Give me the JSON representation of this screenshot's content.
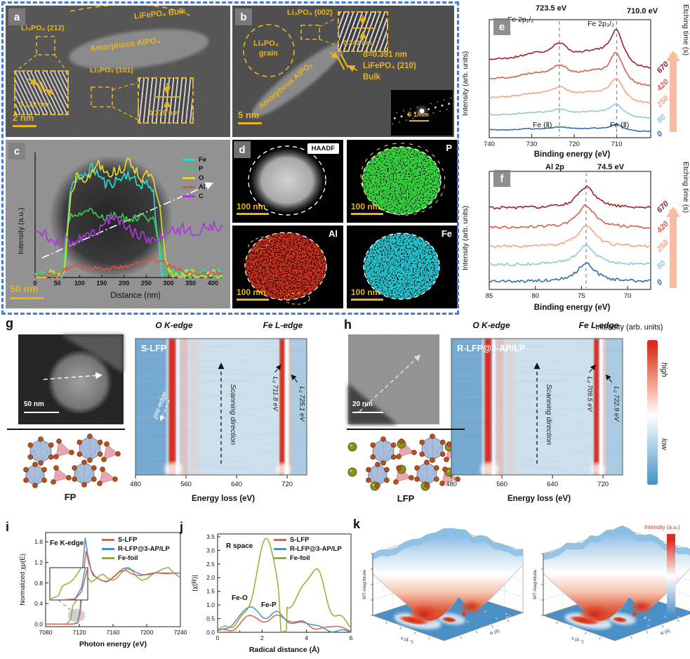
{
  "panels": {
    "a": {
      "letter": "a",
      "lifepo4_bulk": "LiFePO₄ Bulk",
      "li3po4_212": "Li₃PO₄ (212)",
      "amorphous": "Amorphous AlPO₄",
      "li3po4_101": "Li₃PO₄ (101)",
      "d1": "0.179 nm",
      "d2": "0.379 nm",
      "scalebar": "2 nm"
    },
    "b": {
      "letter": "b",
      "li3po4_002": "Li₃PO₄ (002)",
      "grain1": "Li₃PO₄",
      "grain2": "grain",
      "d_inset": "0.242 nm",
      "d_main": "d=0.391 nm",
      "plane": "LiFePO₄ (210)",
      "bulk": "Bulk",
      "amorphous": "Amorphous AlPO₄",
      "scalebar": "5 nm",
      "diff_scale": "5 1/nm"
    },
    "c": {
      "letter": "c",
      "ylabel": "Intensity (a.u.)",
      "xlabel": "Distance (nm)",
      "scalebar": "50 nm"
    },
    "d": {
      "letter": "d",
      "tiles": [
        {
          "label": "HAADF",
          "scale": "100 nm"
        },
        {
          "label": "P",
          "scale": "100 nm"
        },
        {
          "label": "Al",
          "scale": "100 nm"
        },
        {
          "label": "Fe",
          "scale": "100 nm"
        }
      ]
    },
    "e": {
      "letter": "e",
      "peak1": "723.5 eV",
      "peak2": "710.0 eV",
      "comp1": "Fe 2p₁/₂",
      "comp2": "Fe 2p₃/₂",
      "fe2a": "Fe (Ⅱ)",
      "fe2b": "Fe (Ⅱ)",
      "ylabel": "Intensity (arb. units)",
      "xlabel": "Binding energy (eV)",
      "etch": "Etching time (s)"
    },
    "f": {
      "letter": "f",
      "comp": "Al 2p",
      "peak": "74.5 eV",
      "ylabel": "Intensity (arb. units)",
      "xlabel": "Binding energy (eV)",
      "etch": "Etching time (s)"
    },
    "g": {
      "letter": "g",
      "scalebar": "50 nm",
      "structure": "FP",
      "sample": "S-LFP",
      "o_edge": "O K-edge",
      "fe_edge": "Fe L-edge",
      "pre_edge": "pre-edge",
      "scan": "Scanning direction",
      "l3": "L₃ 711.8 eV",
      "l2": "L₂ 725.1 eV",
      "xlabel": "Energy loss (eV)"
    },
    "h": {
      "letter": "h",
      "scalebar": "20 nm",
      "structure": "LFP",
      "sample": "R-LFP@3-AP/LP",
      "o_edge": "O K-edge",
      "fe_edge": "Fe L-edge",
      "scan": "Scanning direction",
      "l3": "L₃ 709.5 eV",
      "l2": "L₂ 722.9 eV",
      "xlabel": "Energy loss (eV)"
    },
    "cbar_gh": {
      "title": "Intensity (arb. units)",
      "high": "high",
      "low": "low"
    },
    "i": {
      "letter": "i",
      "tag": "Fe K-edge"
    },
    "j": {
      "letter": "j",
      "tag": "R space",
      "feo": "Fe-O",
      "fep": "Fe-P"
    },
    "k": {
      "letter": "k",
      "zlabel": "WT-magnitude",
      "xk": "k (Å⁻¹)",
      "xr": "R (Å)",
      "cbar": "Intensity (a.u.)"
    }
  },
  "chart_data": [
    {
      "id": "c_profile",
      "type": "line",
      "xlabel": "Distance (nm)",
      "ylabel": "Intensity (a.u.)",
      "xlim": [
        0,
        420
      ],
      "xticks": [
        0,
        50,
        100,
        150,
        200,
        250,
        300,
        350,
        400
      ],
      "series": [
        {
          "name": "Fe",
          "color": "#2fd6ce",
          "noise": 0.05,
          "seed": 11,
          "knots": [
            [
              0,
              0.02
            ],
            [
              60,
              0.02
            ],
            [
              70,
              0.3
            ],
            [
              80,
              0.8
            ],
            [
              100,
              0.85
            ],
            [
              130,
              0.95
            ],
            [
              160,
              0.8
            ],
            [
              190,
              0.85
            ],
            [
              210,
              0.9
            ],
            [
              230,
              0.8
            ],
            [
              250,
              0.82
            ],
            [
              265,
              0.75
            ],
            [
              275,
              0.4
            ],
            [
              285,
              0.05
            ],
            [
              420,
              0.02
            ]
          ]
        },
        {
          "name": "P",
          "color": "#3ec84e",
          "noise": 0.04,
          "seed": 12,
          "knots": [
            [
              0,
              0.02
            ],
            [
              60,
              0.02
            ],
            [
              75,
              0.5
            ],
            [
              90,
              0.55
            ],
            [
              120,
              0.6
            ],
            [
              150,
              0.52
            ],
            [
              180,
              0.55
            ],
            [
              210,
              0.5
            ],
            [
              240,
              0.55
            ],
            [
              265,
              0.5
            ],
            [
              280,
              0.3
            ],
            [
              290,
              0.05
            ],
            [
              420,
              0.02
            ]
          ]
        },
        {
          "name": "O",
          "color": "#e3d831",
          "noise": 0.05,
          "seed": 13,
          "knots": [
            [
              0,
              0.03
            ],
            [
              65,
              0.03
            ],
            [
              80,
              0.7
            ],
            [
              95,
              0.9
            ],
            [
              120,
              0.85
            ],
            [
              140,
              1.0
            ],
            [
              170,
              0.9
            ],
            [
              200,
              0.95
            ],
            [
              215,
              1.0
            ],
            [
              240,
              0.85
            ],
            [
              260,
              0.9
            ],
            [
              280,
              0.6
            ],
            [
              295,
              0.1
            ],
            [
              310,
              0.03
            ],
            [
              420,
              0.02
            ]
          ]
        },
        {
          "name": "Al",
          "color": "#e2503f",
          "noise": 0.02,
          "seed": 14,
          "knots": [
            [
              0,
              0.02
            ],
            [
              55,
              0.02
            ],
            [
              70,
              0.08
            ],
            [
              100,
              0.1
            ],
            [
              150,
              0.07
            ],
            [
              200,
              0.1
            ],
            [
              230,
              0.12
            ],
            [
              260,
              0.16
            ],
            [
              285,
              0.14
            ],
            [
              310,
              0.08
            ],
            [
              340,
              0.04
            ],
            [
              420,
              0.03
            ]
          ]
        },
        {
          "name": "C",
          "color": "#a63bd6",
          "noise": 0.05,
          "seed": 15,
          "knots": [
            [
              0,
              0.42
            ],
            [
              30,
              0.35
            ],
            [
              60,
              0.3
            ],
            [
              90,
              0.32
            ],
            [
              120,
              0.38
            ],
            [
              150,
              0.42
            ],
            [
              175,
              0.55
            ],
            [
              185,
              0.5
            ],
            [
              210,
              0.42
            ],
            [
              240,
              0.35
            ],
            [
              270,
              0.3
            ],
            [
              300,
              0.38
            ],
            [
              330,
              0.42
            ],
            [
              360,
              0.4
            ],
            [
              390,
              0.45
            ],
            [
              420,
              0.42
            ]
          ]
        }
      ]
    },
    {
      "id": "e_xps",
      "type": "line",
      "xlabel": "Binding energy (eV)",
      "ylabel": "Intensity (arb. units)",
      "xlim": [
        740,
        702
      ],
      "xticks": [
        740,
        730,
        720,
        710
      ],
      "ymax": 4.6,
      "dash": [
        723.5,
        710.0
      ],
      "peaks": {
        "fe2p12": 723.5,
        "fe2p32": 710.0
      },
      "series": [
        {
          "time": 670,
          "color": "#a32125",
          "offset": 3.02,
          "scale": 1.12,
          "seed": 21
        },
        {
          "time": 420,
          "color": "#d6604d",
          "offset": 2.28,
          "scale": 0.98,
          "seed": 22
        },
        {
          "time": 250,
          "color": "#f4a582",
          "offset": 1.55,
          "scale": 0.72,
          "seed": 23
        },
        {
          "time": 80,
          "color": "#92c5de",
          "offset": 0.88,
          "scale": 0.4,
          "seed": 24
        },
        {
          "time": 0,
          "color": "#2e6fa7",
          "offset": 0.3,
          "scale": 0.2,
          "seed": 25
        }
      ]
    },
    {
      "id": "f_xps",
      "type": "line",
      "xlabel": "Binding energy (eV)",
      "ylabel": "Intensity (arb. units)",
      "xlim": [
        85,
        67.5
      ],
      "xticks": [
        85,
        80,
        75,
        70
      ],
      "ymax": 4.2,
      "dash": [
        74.5
      ],
      "peaks": {
        "al2p": 74.5
      },
      "series": [
        {
          "time": 670,
          "color": "#a32125",
          "offset": 2.9,
          "scale": 0.95,
          "seed": 31
        },
        {
          "time": 420,
          "color": "#d6604d",
          "offset": 2.2,
          "scale": 1.0,
          "seed": 32
        },
        {
          "time": 250,
          "color": "#f4a582",
          "offset": 1.52,
          "scale": 0.95,
          "seed": 33
        },
        {
          "time": 80,
          "color": "#92c5de",
          "offset": 0.88,
          "scale": 0.9,
          "seed": 34
        },
        {
          "time": 0,
          "color": "#2e6fa7",
          "offset": 0.28,
          "scale": 0.85,
          "seed": 35
        }
      ]
    },
    {
      "id": "i_xanes",
      "type": "line",
      "xlabel": "Photon energy (eV)",
      "ylabel": "Normalized χμ(E)",
      "xlim": [
        7080,
        7240
      ],
      "xticks": [
        7080,
        7120,
        7160,
        7200,
        7240
      ],
      "yticks": [
        0.0,
        0.4,
        0.8,
        1.2,
        1.6
      ],
      "ylim": [
        -0.05,
        1.78
      ],
      "series": [
        {
          "name": "S-LFP",
          "color": "#e0604e",
          "knots": [
            [
              7080,
              0
            ],
            [
              7112,
              0
            ],
            [
              7118,
              0.02
            ],
            [
              7121,
              0.2
            ],
            [
              7125,
              1.0
            ],
            [
              7128,
              1.42
            ],
            [
              7131,
              1.2
            ],
            [
              7136,
              0.95
            ],
            [
              7141,
              0.9
            ],
            [
              7148,
              0.84
            ],
            [
              7154,
              0.83
            ],
            [
              7160,
              0.9
            ],
            [
              7168,
              1.02
            ],
            [
              7175,
              1.05
            ],
            [
              7183,
              0.97
            ],
            [
              7192,
              0.94
            ],
            [
              7200,
              0.97
            ],
            [
              7210,
              1.0
            ],
            [
              7222,
              0.98
            ],
            [
              7232,
              0.99
            ],
            [
              7240,
              0.99
            ]
          ]
        },
        {
          "name": "R-LFP@3-AP/LP",
          "color": "#4a90c8",
          "knots": [
            [
              7080,
              0
            ],
            [
              7112,
              0
            ],
            [
              7118,
              0.03
            ],
            [
              7121,
              0.3
            ],
            [
              7124,
              1.1
            ],
            [
              7127,
              1.68
            ],
            [
              7130,
              1.35
            ],
            [
              7134,
              1.05
            ],
            [
              7139,
              0.92
            ],
            [
              7146,
              0.85
            ],
            [
              7152,
              0.82
            ],
            [
              7158,
              0.88
            ],
            [
              7166,
              1.0
            ],
            [
              7172,
              1.08
            ],
            [
              7178,
              1.1
            ],
            [
              7186,
              1.02
            ],
            [
              7194,
              0.96
            ],
            [
              7202,
              0.96
            ],
            [
              7212,
              1.0
            ],
            [
              7222,
              0.99
            ],
            [
              7240,
              0.99
            ]
          ]
        },
        {
          "name": "Fe-foil",
          "color": "#a3a832",
          "knots": [
            [
              7080,
              0
            ],
            [
              7105,
              0
            ],
            [
              7110,
              0.1
            ],
            [
              7112,
              0.35
            ],
            [
              7115,
              0.42
            ],
            [
              7117,
              0.5
            ],
            [
              7120,
              0.72
            ],
            [
              7123,
              0.95
            ],
            [
              7126,
              1.0
            ],
            [
              7130,
              0.9
            ],
            [
              7134,
              0.82
            ],
            [
              7138,
              0.85
            ],
            [
              7143,
              0.93
            ],
            [
              7147,
              0.97
            ],
            [
              7150,
              0.95
            ],
            [
              7155,
              0.88
            ],
            [
              7160,
              0.85
            ],
            [
              7165,
              0.9
            ],
            [
              7170,
              1.0
            ],
            [
              7176,
              1.08
            ],
            [
              7182,
              1.05
            ],
            [
              7188,
              0.92
            ],
            [
              7194,
              0.85
            ],
            [
              7200,
              0.88
            ],
            [
              7207,
              0.97
            ],
            [
              7213,
              1.02
            ],
            [
              7220,
              1.08
            ],
            [
              7226,
              1.1
            ],
            [
              7232,
              1.0
            ],
            [
              7240,
              0.9
            ]
          ]
        }
      ]
    },
    {
      "id": "j_exafs",
      "type": "line",
      "xlabel": "Radical distance (Å)",
      "ylabel": "|χ(R)|",
      "xlim": [
        0,
        6
      ],
      "xticks": [
        0,
        2,
        4,
        6
      ],
      "yticks": [
        0.0,
        0.5,
        1.0,
        1.5,
        2.0,
        2.5,
        3.0,
        3.5
      ],
      "ylim": [
        0,
        3.6
      ],
      "series": [
        {
          "name": "S-LFP",
          "color": "#e0604e",
          "baseline": 0.07,
          "peaks": [
            [
              1.5,
              0.58,
              0.35
            ],
            [
              2.6,
              0.55,
              0.3
            ],
            [
              3.3,
              0.28,
              0.3
            ],
            [
              3.9,
              0.25,
              0.3
            ],
            [
              5.2,
              0.18,
              0.3
            ]
          ]
        },
        {
          "name": "R-LFP@3-AP/LP",
          "color": "#4a90c8",
          "baseline": 0.05,
          "peaks": [
            [
              0.9,
              0.3,
              0.3
            ],
            [
              1.55,
              0.88,
              0.35
            ],
            [
              2.6,
              0.7,
              0.3
            ],
            [
              3.5,
              0.3,
              0.4
            ],
            [
              4.3,
              0.22,
              0.3
            ]
          ]
        },
        {
          "name": "Fe-foil",
          "color": "#a3a832",
          "baseline": 0.08,
          "peaks": [
            [
              0.4,
              0.12,
              0.2
            ],
            [
              1.1,
              0.35,
              0.25
            ],
            [
              2.2,
              3.34,
              0.45
            ],
            [
              3.5,
              0.7,
              0.35
            ],
            [
              3.9,
              0.82,
              0.3
            ],
            [
              4.5,
              2.1,
              0.35
            ],
            [
              5.5,
              0.48,
              0.3
            ]
          ]
        }
      ]
    },
    {
      "id": "g_eels",
      "type": "heatmap",
      "xlabel": "Energy loss (eV)",
      "xlim": [
        480,
        751
      ],
      "xticks": [
        480,
        560,
        640,
        720
      ],
      "o_band": 538,
      "fe_l3": 711.8,
      "fe_l2": 725.1,
      "pre_edge": true
    },
    {
      "id": "h_eels",
      "type": "heatmap",
      "xlabel": "Energy loss (eV)",
      "xlim": [
        480,
        751
      ],
      "xticks": [
        480,
        560,
        640,
        720
      ],
      "o_band": 538,
      "fe_l3": 709.5,
      "fe_l2": 722.9,
      "pre_edge": false
    },
    {
      "id": "k_wavelet",
      "type": "surface",
      "zlabel": "WT-magnitude",
      "xlabel": "k (Å⁻¹)",
      "ylabel": "R (Å)",
      "colorbar": "Intensity (a.u.)",
      "plots": 2
    }
  ]
}
